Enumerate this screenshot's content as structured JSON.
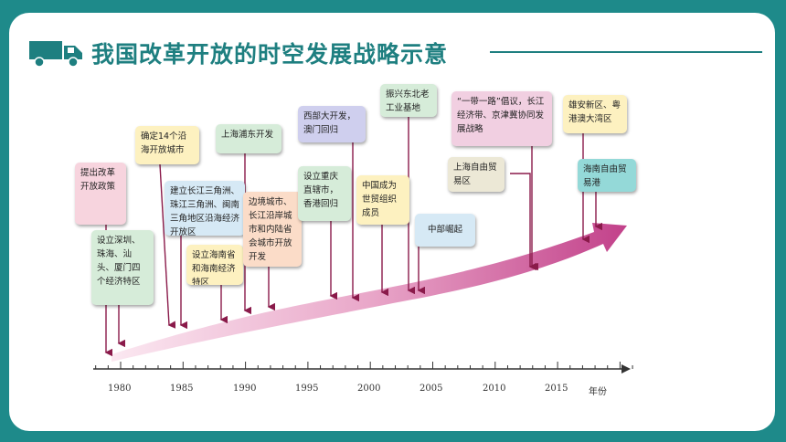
{
  "title": "我国改革开放的时空发展战略示意",
  "header_icon": "truck-icon",
  "colors": {
    "frame": "#1e8a8a",
    "title": "#1e7f80",
    "arrow": "#c2418a"
  },
  "axis": {
    "unit": "年份",
    "ticks": [
      "1980",
      "1985",
      "1990",
      "1995",
      "2000",
      "2005",
      "2010",
      "2015"
    ]
  },
  "events": [
    {
      "text": "提出改革开放政策"
    },
    {
      "text": "设立深圳、珠海、汕头、厦门四个经济特区"
    },
    {
      "text": "确定14个沿海开放城市"
    },
    {
      "text": "建立长江三角洲、珠江三角洲、闽南三角地区沿海经济开放区"
    },
    {
      "text": "设立海南省和海南经济特区"
    },
    {
      "text": "上海浦东开发"
    },
    {
      "text": "边境城市、长江沿岸城市和内陆省会城市开放开发"
    },
    {
      "text": "西部大开发，澳门回归"
    },
    {
      "text": "设立重庆直辖市，香港回归"
    },
    {
      "text": "中国成为世贸组织成员"
    },
    {
      "text": "振兴东北老工业基地"
    },
    {
      "text": "中部崛起"
    },
    {
      "text": "“一带一路”倡议，长江经济带、京津冀协同发展战略"
    },
    {
      "text": "上海自由贸易区"
    },
    {
      "text": "雄安新区、粤港澳大湾区"
    },
    {
      "text": "海南自由贸易港"
    }
  ]
}
